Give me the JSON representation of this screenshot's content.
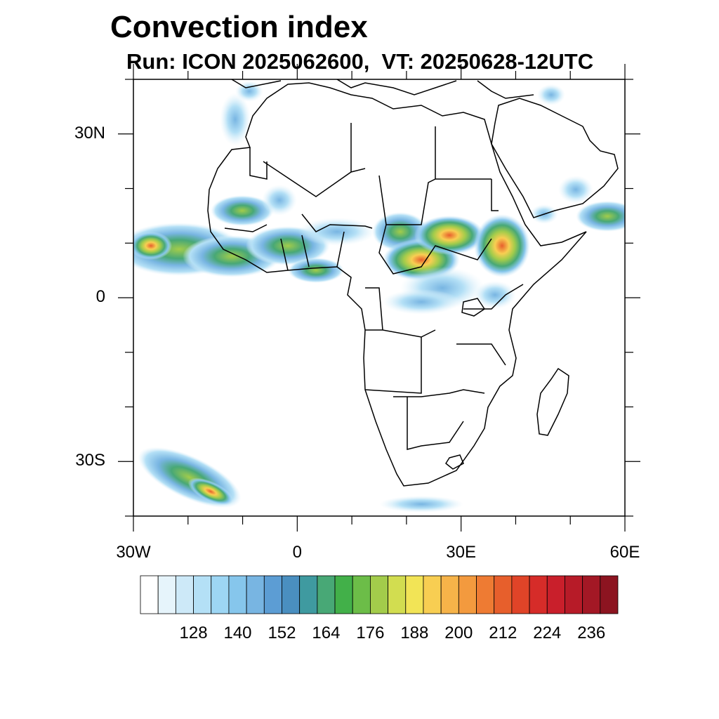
{
  "header": {
    "title": "Convection index",
    "subtitle": "Run: ICON 2025062600,  VT: 20250628-12UTC"
  },
  "map": {
    "projection": "lat-lon",
    "lon_range": [
      -30,
      60
    ],
    "lat_range": [
      -40,
      40
    ],
    "lat_ticks": [
      {
        "value": 30,
        "label": "30N"
      },
      {
        "value": 0,
        "label": "0"
      },
      {
        "value": -30,
        "label": "30S"
      }
    ],
    "lon_ticks": [
      {
        "value": -30,
        "label": "30W"
      },
      {
        "value": 0,
        "label": "0"
      },
      {
        "value": 30,
        "label": "30E"
      },
      {
        "value": 60,
        "label": "60E"
      }
    ],
    "field_name": "Convection index",
    "model": "ICON",
    "run": "2025062600",
    "valid_time": "20250628-12UTC"
  },
  "colorbar": {
    "labels": [
      "128",
      "140",
      "152",
      "164",
      "176",
      "188",
      "200",
      "212",
      "224",
      "236"
    ],
    "colors": [
      "#ffffff",
      "#e6f4fb",
      "#cde9f8",
      "#b4e0f6",
      "#9dd6f4",
      "#86c6ec",
      "#78b5e2",
      "#5c9dd4",
      "#4a8fc0",
      "#3f9aa0",
      "#48a876",
      "#42b049",
      "#6cbd48",
      "#a3cc4b",
      "#d2dd50",
      "#f2e456",
      "#f8ce52",
      "#f6b349",
      "#f39a3e",
      "#ee7b33",
      "#e75f2c",
      "#e04428",
      "#d62c29",
      "#c91f2b",
      "#b71b28",
      "#a31825",
      "#8c1420"
    ]
  }
}
